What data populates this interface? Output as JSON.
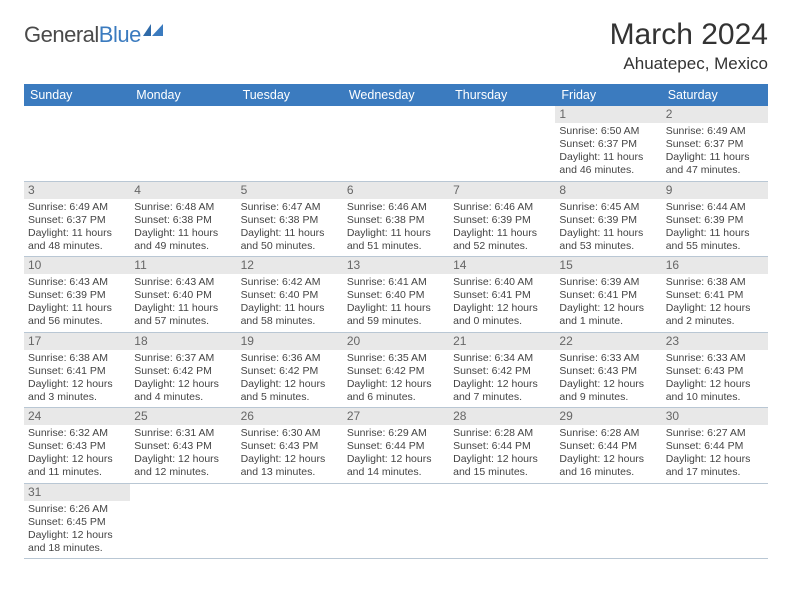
{
  "brand": {
    "general": "General",
    "blue": "Blue"
  },
  "title": "March 2024",
  "location": "Ahuatepec, Mexico",
  "colors": {
    "header_bg": "#3b7bbf",
    "header_text": "#ffffff",
    "daynum_bg": "#e8e8e8",
    "cell_border": "#b9c7d4",
    "body_text": "#444444"
  },
  "weekdays": [
    "Sunday",
    "Monday",
    "Tuesday",
    "Wednesday",
    "Thursday",
    "Friday",
    "Saturday"
  ],
  "weeks": [
    [
      null,
      null,
      null,
      null,
      null,
      {
        "d": "1",
        "sr": "Sunrise: 6:50 AM",
        "ss": "Sunset: 6:37 PM",
        "dl1": "Daylight: 11 hours",
        "dl2": "and 46 minutes."
      },
      {
        "d": "2",
        "sr": "Sunrise: 6:49 AM",
        "ss": "Sunset: 6:37 PM",
        "dl1": "Daylight: 11 hours",
        "dl2": "and 47 minutes."
      }
    ],
    [
      {
        "d": "3",
        "sr": "Sunrise: 6:49 AM",
        "ss": "Sunset: 6:37 PM",
        "dl1": "Daylight: 11 hours",
        "dl2": "and 48 minutes."
      },
      {
        "d": "4",
        "sr": "Sunrise: 6:48 AM",
        "ss": "Sunset: 6:38 PM",
        "dl1": "Daylight: 11 hours",
        "dl2": "and 49 minutes."
      },
      {
        "d": "5",
        "sr": "Sunrise: 6:47 AM",
        "ss": "Sunset: 6:38 PM",
        "dl1": "Daylight: 11 hours",
        "dl2": "and 50 minutes."
      },
      {
        "d": "6",
        "sr": "Sunrise: 6:46 AM",
        "ss": "Sunset: 6:38 PM",
        "dl1": "Daylight: 11 hours",
        "dl2": "and 51 minutes."
      },
      {
        "d": "7",
        "sr": "Sunrise: 6:46 AM",
        "ss": "Sunset: 6:39 PM",
        "dl1": "Daylight: 11 hours",
        "dl2": "and 52 minutes."
      },
      {
        "d": "8",
        "sr": "Sunrise: 6:45 AM",
        "ss": "Sunset: 6:39 PM",
        "dl1": "Daylight: 11 hours",
        "dl2": "and 53 minutes."
      },
      {
        "d": "9",
        "sr": "Sunrise: 6:44 AM",
        "ss": "Sunset: 6:39 PM",
        "dl1": "Daylight: 11 hours",
        "dl2": "and 55 minutes."
      }
    ],
    [
      {
        "d": "10",
        "sr": "Sunrise: 6:43 AM",
        "ss": "Sunset: 6:39 PM",
        "dl1": "Daylight: 11 hours",
        "dl2": "and 56 minutes."
      },
      {
        "d": "11",
        "sr": "Sunrise: 6:43 AM",
        "ss": "Sunset: 6:40 PM",
        "dl1": "Daylight: 11 hours",
        "dl2": "and 57 minutes."
      },
      {
        "d": "12",
        "sr": "Sunrise: 6:42 AM",
        "ss": "Sunset: 6:40 PM",
        "dl1": "Daylight: 11 hours",
        "dl2": "and 58 minutes."
      },
      {
        "d": "13",
        "sr": "Sunrise: 6:41 AM",
        "ss": "Sunset: 6:40 PM",
        "dl1": "Daylight: 11 hours",
        "dl2": "and 59 minutes."
      },
      {
        "d": "14",
        "sr": "Sunrise: 6:40 AM",
        "ss": "Sunset: 6:41 PM",
        "dl1": "Daylight: 12 hours",
        "dl2": "and 0 minutes."
      },
      {
        "d": "15",
        "sr": "Sunrise: 6:39 AM",
        "ss": "Sunset: 6:41 PM",
        "dl1": "Daylight: 12 hours",
        "dl2": "and 1 minute."
      },
      {
        "d": "16",
        "sr": "Sunrise: 6:38 AM",
        "ss": "Sunset: 6:41 PM",
        "dl1": "Daylight: 12 hours",
        "dl2": "and 2 minutes."
      }
    ],
    [
      {
        "d": "17",
        "sr": "Sunrise: 6:38 AM",
        "ss": "Sunset: 6:41 PM",
        "dl1": "Daylight: 12 hours",
        "dl2": "and 3 minutes."
      },
      {
        "d": "18",
        "sr": "Sunrise: 6:37 AM",
        "ss": "Sunset: 6:42 PM",
        "dl1": "Daylight: 12 hours",
        "dl2": "and 4 minutes."
      },
      {
        "d": "19",
        "sr": "Sunrise: 6:36 AM",
        "ss": "Sunset: 6:42 PM",
        "dl1": "Daylight: 12 hours",
        "dl2": "and 5 minutes."
      },
      {
        "d": "20",
        "sr": "Sunrise: 6:35 AM",
        "ss": "Sunset: 6:42 PM",
        "dl1": "Daylight: 12 hours",
        "dl2": "and 6 minutes."
      },
      {
        "d": "21",
        "sr": "Sunrise: 6:34 AM",
        "ss": "Sunset: 6:42 PM",
        "dl1": "Daylight: 12 hours",
        "dl2": "and 7 minutes."
      },
      {
        "d": "22",
        "sr": "Sunrise: 6:33 AM",
        "ss": "Sunset: 6:43 PM",
        "dl1": "Daylight: 12 hours",
        "dl2": "and 9 minutes."
      },
      {
        "d": "23",
        "sr": "Sunrise: 6:33 AM",
        "ss": "Sunset: 6:43 PM",
        "dl1": "Daylight: 12 hours",
        "dl2": "and 10 minutes."
      }
    ],
    [
      {
        "d": "24",
        "sr": "Sunrise: 6:32 AM",
        "ss": "Sunset: 6:43 PM",
        "dl1": "Daylight: 12 hours",
        "dl2": "and 11 minutes."
      },
      {
        "d": "25",
        "sr": "Sunrise: 6:31 AM",
        "ss": "Sunset: 6:43 PM",
        "dl1": "Daylight: 12 hours",
        "dl2": "and 12 minutes."
      },
      {
        "d": "26",
        "sr": "Sunrise: 6:30 AM",
        "ss": "Sunset: 6:43 PM",
        "dl1": "Daylight: 12 hours",
        "dl2": "and 13 minutes."
      },
      {
        "d": "27",
        "sr": "Sunrise: 6:29 AM",
        "ss": "Sunset: 6:44 PM",
        "dl1": "Daylight: 12 hours",
        "dl2": "and 14 minutes."
      },
      {
        "d": "28",
        "sr": "Sunrise: 6:28 AM",
        "ss": "Sunset: 6:44 PM",
        "dl1": "Daylight: 12 hours",
        "dl2": "and 15 minutes."
      },
      {
        "d": "29",
        "sr": "Sunrise: 6:28 AM",
        "ss": "Sunset: 6:44 PM",
        "dl1": "Daylight: 12 hours",
        "dl2": "and 16 minutes."
      },
      {
        "d": "30",
        "sr": "Sunrise: 6:27 AM",
        "ss": "Sunset: 6:44 PM",
        "dl1": "Daylight: 12 hours",
        "dl2": "and 17 minutes."
      }
    ],
    [
      {
        "d": "31",
        "sr": "Sunrise: 6:26 AM",
        "ss": "Sunset: 6:45 PM",
        "dl1": "Daylight: 12 hours",
        "dl2": "and 18 minutes."
      },
      null,
      null,
      null,
      null,
      null,
      null
    ]
  ]
}
